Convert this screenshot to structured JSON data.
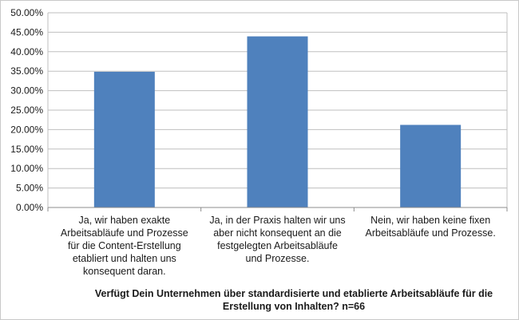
{
  "chart_data": {
    "type": "bar",
    "title": "Verfügt Dein Unternehmen über standardisierte und etablierte Arbeitsabläufe für die Erstellung von Inhalten? n=66",
    "title_lines": [
      "Verfügt Dein Unternehmen über standardisierte und etablierte Arbeitsabläufe für die",
      "Erstellung von Inhalten? n=66"
    ],
    "xlabel": "",
    "ylabel": "",
    "ylim": [
      0,
      50
    ],
    "ytick_step": 5,
    "ytick_labels": [
      "0.00%",
      "5.00%",
      "10.00%",
      "15.00%",
      "20.00%",
      "25.00%",
      "30.00%",
      "35.00%",
      "40.00%",
      "45.00%",
      "50.00%"
    ],
    "categories": [
      "Ja, wir haben exakte Arbeitsabläufe und Prozesse für die Content-Erstellung etabliert und halten uns konsequent daran.",
      "Ja, in der Praxis halten wir uns aber nicht konsequent an die festgelegten Arbeitsabläufe und Prozesse.",
      "Nein, wir haben keine fixen Arbeitsabläufe und Prozesse."
    ],
    "category_lines": [
      [
        "Ja, wir haben exakte",
        "Arbeitsabläufe und Prozesse",
        "für die Content-Erstellung",
        "etabliert und halten uns",
        "konsequent daran."
      ],
      [
        "Ja, in der Praxis halten wir uns",
        "aber nicht konsequent an die",
        "festgelegten Arbeitsabläufe",
        "und Prozesse."
      ],
      [
        "Nein, wir haben keine fixen",
        "Arbeitsabläufe und Prozesse."
      ]
    ],
    "values": [
      34.85,
      43.94,
      21.21
    ],
    "bar_color": "#4f81bd",
    "grid": true,
    "legend": "none"
  }
}
